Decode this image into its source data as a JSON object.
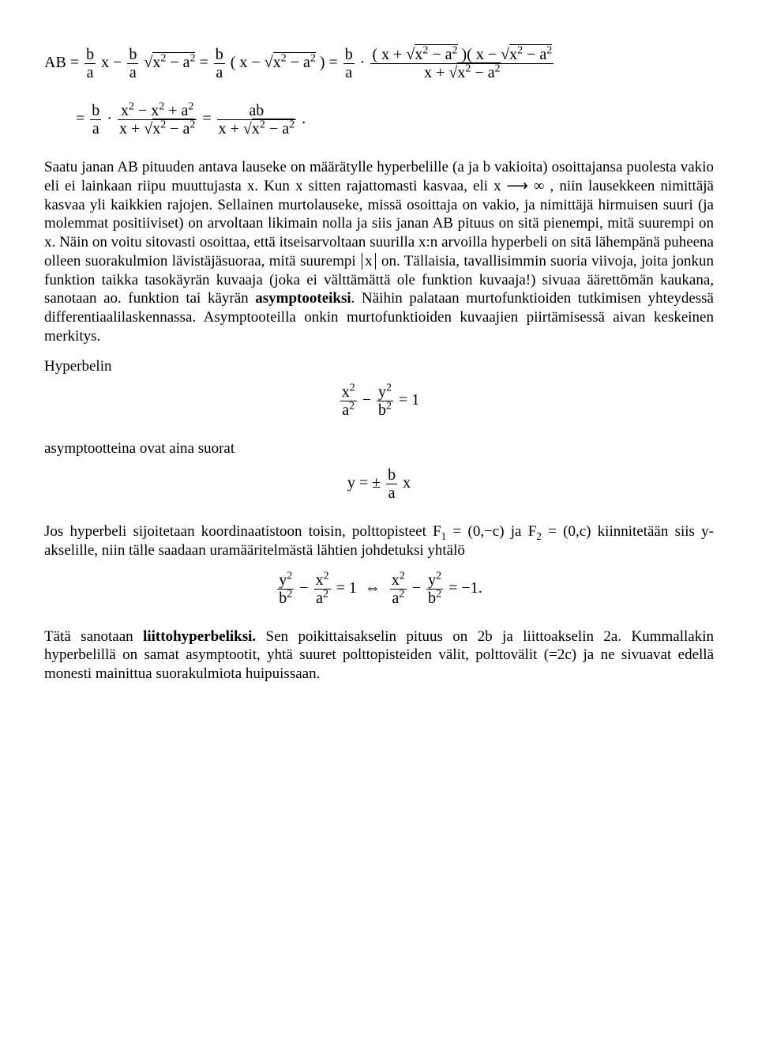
{
  "math1_html": "AB = <span class='frac'><span class='num'>b</span><span class='den'>a</span></span> x − <span class='frac'><span class='num'>b</span><span class='den'>a</span></span> √<span style='border-top:1px solid #000;padding-top:1px'>x<sup>2</sup> − a<sup>2</sup></span> = <span class='frac'><span class='num'>b</span><span class='den'>a</span></span> ( x − √<span style='border-top:1px solid #000;padding-top:1px'>x<sup>2</sup> − a<sup>2</sup></span> ) = <span class='frac'><span class='num'>b</span><span class='den'>a</span></span> · <span class='frac'><span class='num'>( x + √<span style=\"border-top:1px solid #000;padding-top:1px\">x<sup>2</sup> − a<sup>2</sup></span> )( x − √<span style=\"border-top:1px solid #000;padding-top:1px\">x<sup>2</sup> − a<sup>2</sup></span></span><span class='den'>x + √<span style=\"border-top:1px solid #000;padding-top:1px\">x<sup>2</sup> − a<sup>2</sup></span></span></span>",
  "math2_html": "= <span class='frac'><span class='num'>b</span><span class='den'>a</span></span> · <span class='frac'><span class='num'>x<sup>2</sup> − x<sup>2</sup> + a<sup>2</sup></span><span class='den'>x + √<span style=\"border-top:1px solid #000;padding-top:1px\">x<sup>2</sup> − a<sup>2</sup></span></span></span> = <span class='frac'><span class='num'>ab</span><span class='den'>x + √<span style=\"border-top:1px solid #000;padding-top:1px\">x<sup>2</sup> − a<sup>2</sup></span></span></span> .",
  "p1_a": "Saatu janan AB pituuden antava lauseke on määrätylle hyperbelille (a ja b vakioita) osoittajansa puolesta vakio eli ei lainkaan riipu muuttujasta x. Kun x sitten rajattomasti kasvaa, eli ",
  "p1_arrow": "x ⟶ ∞",
  "p1_b": " , niin lausekkeen nimittäjä kasvaa yli kaikkien rajojen. Sellainen murtolauseke, missä osoittaja on vakio, ja nimittäjä hirmuisen suuri (ja molemmat positiiviset) on arvoltaan likimain nolla ja siis janan AB pituus on sitä pienempi, mitä suurempi on x. Näin on voitu sitovasti osoittaa, että itseisarvoltaan suurilla x:n arvoilla hyperbeli on sitä lähempänä puheena olleen suorakulmion lävistäjäsuoraa, mitä suurempi ",
  "p1_abs": "x",
  "p1_c": " on. Tällaisia, tavallisimmin suoria viivoja, joita jonkun funktion taikka tasokäyrän kuvaaja (joka ei välttämättä ole funktion kuvaaja!) sivuaa äärettömän kaukana, sanotaan ao. funktion tai käyrän ",
  "p1_bold": "asymptooteiksi",
  "p1_d": ". Näihin palataan murtofunktioiden tutkimisen yhteydessä differentiaalilaskennassa. Asymptooteilla onkin murtofunktioiden kuvaajien piirtämisessä aivan keskeinen merkitys.",
  "l_hyperbelin": "Hyperbelin",
  "math3_html": "<span class='frac'><span class='num'>x<sup>2</sup></span><span class='den'>a<sup>2</sup></span></span> − <span class='frac'><span class='num'>y<sup>2</sup></span><span class='den'>b<sup>2</sup></span></span> = 1",
  "l_asymptootteina": "asymptootteina ovat aina suorat",
  "math4_html": "y = ± <span class='frac'><span class='num'>b</span><span class='den'>a</span></span> x",
  "p2_a": "Jos hyperbeli sijoitetaan koordinaatistoon toisin, polttopisteet ",
  "p2_f1": "F<sub>1</sub> = (0,−c)",
  "p2_b": " ja ",
  "p2_f2": "F<sub>2</sub> = (0,c)",
  "p2_c": " kiinnitetään siis y-akselille, niin tälle saadaan uramääritelmästä lähtien johdetuksi yhtälö",
  "math5_html": "<span class='frac'><span class='num'>y<sup>2</sup></span><span class='den'>b<sup>2</sup></span></span> − <span class='frac'><span class='num'>x<sup>2</sup></span><span class='den'>a<sup>2</sup></span></span> = 1 &nbsp;⇔&nbsp; <span class='frac'><span class='num'>x<sup>2</sup></span><span class='den'>a<sup>2</sup></span></span> − <span class='frac'><span class='num'>y<sup>2</sup></span><span class='den'>b<sup>2</sup></span></span> = −1.",
  "p3_a": "Tätä sanotaan ",
  "p3_bold": "liittohyperbeliksi.",
  "p3_b": " Sen poikittaisakselin pituus on 2b ja liittoakselin 2a. Kummallakin hyperbelillä on samat asymptootit, yhtä suuret polttopisteiden välit, polttovälit (=2c) ja ne sivuavat edellä monesti mainittua suorakulmiota huipuissaan."
}
